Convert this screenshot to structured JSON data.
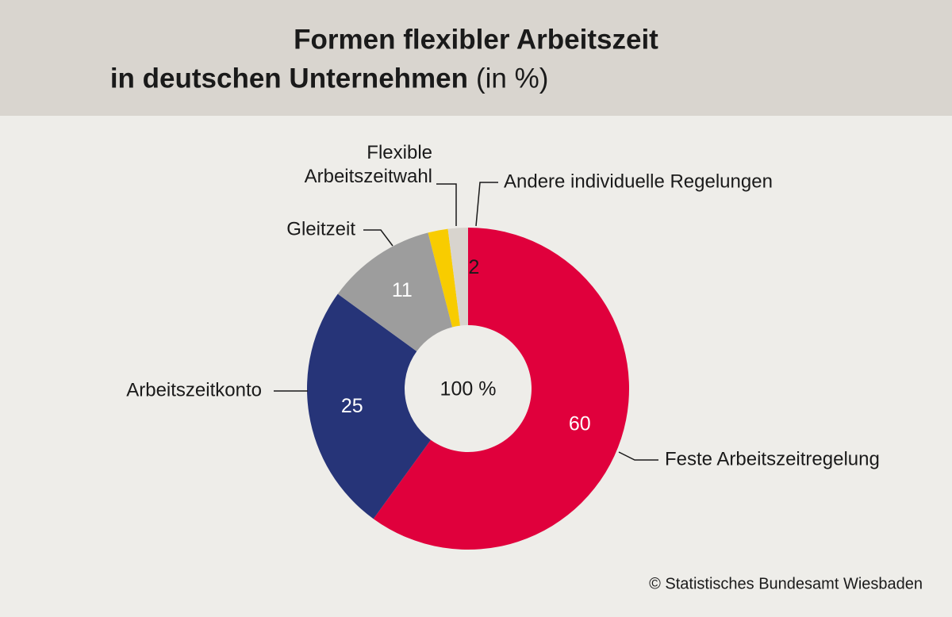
{
  "chart_data": {
    "type": "donut",
    "title": [
      "Formen flexibler Arbeitszeit",
      "in deutschen Unternehmen"
    ],
    "unit_note": "(in %)",
    "center_label": "100 %",
    "source": "© Statistisches Bundesamt Wiesbaden",
    "categories": [
      "Feste Arbeitszeitregelung",
      "Arbeitszeitkonto",
      "Gleitzeit",
      "Flexible Arbeitszeitwahl",
      "Andere individuelle Regelungen"
    ],
    "values": [
      60,
      25,
      11,
      2,
      2
    ],
    "colors": [
      "#e0003c",
      "#263478",
      "#9d9d9d",
      "#f8cc00",
      "#d8d4ce"
    ],
    "label_colors": [
      "#ffffff",
      "#ffffff",
      "#ffffff",
      "#1a1a1a",
      "#1a1a1a"
    ]
  }
}
